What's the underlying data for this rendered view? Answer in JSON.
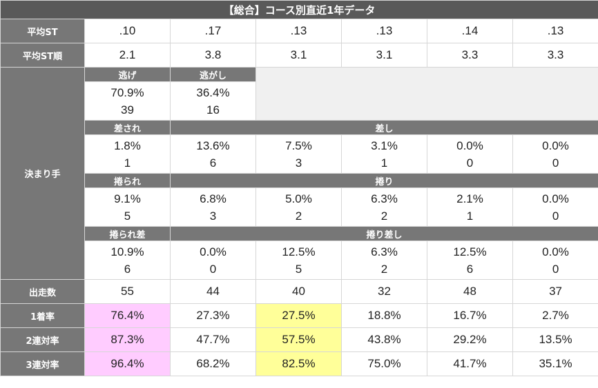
{
  "title": "【総合】コース別直近1年データ",
  "colors": {
    "header_bg": "#595959",
    "label_bg": "#777777",
    "highlight_pink": "#ffccff",
    "highlight_yellow": "#ffff99",
    "empty_bg": "#f0f0f0"
  },
  "avg_st": {
    "label": "平均ST",
    "values": [
      ".10",
      ".17",
      ".13",
      ".13",
      ".14",
      ".13"
    ]
  },
  "avg_st_rank": {
    "label": "平均ST順",
    "values": [
      "2.1",
      "3.8",
      "3.1",
      "3.1",
      "3.3",
      "3.3"
    ]
  },
  "kimarite": {
    "label": "決まり手",
    "nige": {
      "label": "逃げ",
      "pct": "70.9%",
      "count": "39"
    },
    "nigashi": {
      "label": "逃がし",
      "pct": "36.4%",
      "count": "16"
    },
    "sasare": {
      "label": "差され",
      "pct": "1.8%",
      "count": "1"
    },
    "sashi": {
      "label": "差し",
      "cells": [
        {
          "pct": "13.6%",
          "count": "6"
        },
        {
          "pct": "7.5%",
          "count": "3"
        },
        {
          "pct": "3.1%",
          "count": "1"
        },
        {
          "pct": "0.0%",
          "count": "0"
        },
        {
          "pct": "0.0%",
          "count": "0"
        }
      ]
    },
    "makurare": {
      "label": "捲られ",
      "pct": "9.1%",
      "count": "5"
    },
    "makuri": {
      "label": "捲り",
      "cells": [
        {
          "pct": "6.8%",
          "count": "3"
        },
        {
          "pct": "5.0%",
          "count": "2"
        },
        {
          "pct": "6.3%",
          "count": "2"
        },
        {
          "pct": "2.1%",
          "count": "1"
        },
        {
          "pct": "0.0%",
          "count": "0"
        }
      ]
    },
    "makurare_sashi": {
      "label": "捲られ差",
      "pct": "10.9%",
      "count": "6"
    },
    "makuri_sashi": {
      "label": "捲り差し",
      "cells": [
        {
          "pct": "0.0%",
          "count": "0"
        },
        {
          "pct": "12.5%",
          "count": "5"
        },
        {
          "pct": "6.3%",
          "count": "2"
        },
        {
          "pct": "12.5%",
          "count": "6"
        },
        {
          "pct": "0.0%",
          "count": "0"
        }
      ]
    }
  },
  "starts": {
    "label": "出走数",
    "values": [
      "55",
      "44",
      "40",
      "32",
      "48",
      "37"
    ]
  },
  "win_rate": {
    "label": "1着率",
    "values": [
      "76.4%",
      "27.3%",
      "27.5%",
      "18.8%",
      "16.7%",
      "2.7%"
    ]
  },
  "quinella_rate": {
    "label": "2連対率",
    "values": [
      "87.3%",
      "47.7%",
      "57.5%",
      "43.8%",
      "29.2%",
      "13.5%"
    ]
  },
  "trio_rate": {
    "label": "3連対率",
    "values": [
      "96.4%",
      "68.2%",
      "82.5%",
      "75.0%",
      "41.7%",
      "35.1%"
    ]
  }
}
